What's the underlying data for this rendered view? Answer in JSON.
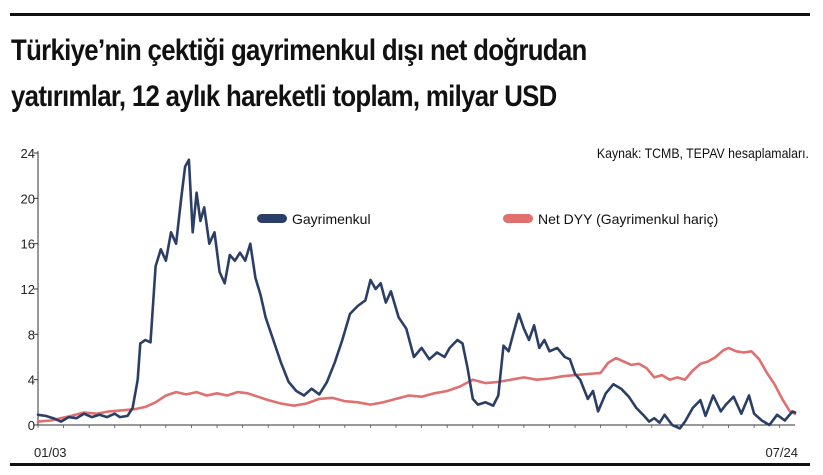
{
  "chart_data": {
    "type": "line",
    "title": "Türkiye’nin çektiği gayrimenkul dışı net doğrudan yatırımlar, 12 aylık hareketli toplam, milyar USD",
    "title_lines": [
      "Türkiye’nin çektiği gayrimenkul dışı net doğrudan",
      "yatırımlar, 12 aylık hareketli toplam, milyar USD"
    ],
    "source": "Kaynak: TCMB, TEPAV hesaplamaları.",
    "xlabel": "",
    "ylabel": "",
    "ylim": [
      0,
      24
    ],
    "y_ticks": [
      0,
      4,
      8,
      12,
      16,
      20,
      24
    ],
    "x_tick_labels": [
      "01/03",
      "07/24"
    ],
    "x_range": [
      "2003-01",
      "2024-07"
    ],
    "legend_placement": "top",
    "grid": false,
    "series": [
      {
        "name": "Gayrimenkul",
        "color": "#2b3f66",
        "points": [
          [
            2003.0,
            0.9
          ],
          [
            2003.3,
            0.8
          ],
          [
            2003.6,
            0.6
          ],
          [
            2003.9,
            0.3
          ],
          [
            2004.2,
            0.7
          ],
          [
            2004.5,
            0.6
          ],
          [
            2004.8,
            1.0
          ],
          [
            2005.1,
            0.7
          ],
          [
            2005.4,
            0.9
          ],
          [
            2005.7,
            0.7
          ],
          [
            2006.0,
            1.0
          ],
          [
            2006.2,
            0.7
          ],
          [
            2006.5,
            0.8
          ],
          [
            2006.7,
            1.5
          ],
          [
            2006.9,
            4.0
          ],
          [
            2007.0,
            7.2
          ],
          [
            2007.2,
            7.5
          ],
          [
            2007.4,
            7.3
          ],
          [
            2007.6,
            14.0
          ],
          [
            2007.8,
            15.5
          ],
          [
            2008.0,
            14.5
          ],
          [
            2008.2,
            17.0
          ],
          [
            2008.4,
            16.0
          ],
          [
            2008.6,
            20.0
          ],
          [
            2008.75,
            22.8
          ],
          [
            2008.9,
            23.4
          ],
          [
            2009.05,
            17.0
          ],
          [
            2009.2,
            20.5
          ],
          [
            2009.35,
            18.0
          ],
          [
            2009.5,
            19.2
          ],
          [
            2009.7,
            16.0
          ],
          [
            2009.9,
            17.0
          ],
          [
            2010.1,
            13.5
          ],
          [
            2010.3,
            12.5
          ],
          [
            2010.5,
            15.0
          ],
          [
            2010.7,
            14.5
          ],
          [
            2010.9,
            15.2
          ],
          [
            2011.1,
            14.5
          ],
          [
            2011.3,
            16.0
          ],
          [
            2011.5,
            13.0
          ],
          [
            2011.7,
            11.5
          ],
          [
            2011.9,
            9.5
          ],
          [
            2012.2,
            7.5
          ],
          [
            2012.5,
            5.5
          ],
          [
            2012.8,
            3.8
          ],
          [
            2013.1,
            3.0
          ],
          [
            2013.4,
            2.6
          ],
          [
            2013.7,
            3.2
          ],
          [
            2014.0,
            2.7
          ],
          [
            2014.3,
            3.8
          ],
          [
            2014.6,
            5.5
          ],
          [
            2014.9,
            7.5
          ],
          [
            2015.2,
            9.8
          ],
          [
            2015.5,
            10.5
          ],
          [
            2015.8,
            11.0
          ],
          [
            2016.0,
            12.8
          ],
          [
            2016.2,
            12.0
          ],
          [
            2016.4,
            12.5
          ],
          [
            2016.6,
            10.8
          ],
          [
            2016.8,
            11.8
          ],
          [
            2017.1,
            9.5
          ],
          [
            2017.4,
            8.5
          ],
          [
            2017.7,
            6.0
          ],
          [
            2018.0,
            6.8
          ],
          [
            2018.3,
            5.8
          ],
          [
            2018.6,
            6.4
          ],
          [
            2018.9,
            6.0
          ],
          [
            2019.1,
            6.8
          ],
          [
            2019.4,
            7.5
          ],
          [
            2019.6,
            7.2
          ],
          [
            2019.8,
            5.0
          ],
          [
            2020.0,
            2.3
          ],
          [
            2020.2,
            1.8
          ],
          [
            2020.5,
            2.0
          ],
          [
            2020.8,
            1.7
          ],
          [
            2021.0,
            2.6
          ],
          [
            2021.2,
            7.0
          ],
          [
            2021.4,
            6.5
          ],
          [
            2021.6,
            8.2
          ],
          [
            2021.8,
            9.8
          ],
          [
            2022.0,
            8.5
          ],
          [
            2022.2,
            7.5
          ],
          [
            2022.4,
            8.8
          ],
          [
            2022.6,
            6.8
          ],
          [
            2022.8,
            7.5
          ],
          [
            2023.0,
            6.5
          ],
          [
            2023.3,
            6.8
          ],
          [
            2023.6,
            6.0
          ],
          [
            2023.8,
            5.8
          ],
          [
            2024.0,
            4.5
          ],
          [
            2024.2,
            4.0
          ],
          [
            2024.5,
            2.3
          ],
          [
            2024.7,
            3.0
          ],
          [
            2024.9,
            1.2
          ],
          [
            2025.2,
            2.8
          ],
          [
            2025.5,
            3.6
          ],
          [
            2025.8,
            3.2
          ],
          [
            2026.1,
            2.5
          ],
          [
            2026.4,
            1.5
          ],
          [
            2026.7,
            0.8
          ],
          [
            2026.9,
            0.3
          ],
          [
            2027.1,
            0.6
          ],
          [
            2027.3,
            0.2
          ],
          [
            2027.5,
            0.9
          ],
          [
            2027.8,
            0.0
          ],
          [
            2028.1,
            -0.3
          ],
          [
            2028.3,
            0.3
          ],
          [
            2028.6,
            1.5
          ],
          [
            2028.9,
            2.2
          ],
          [
            2029.1,
            0.8
          ],
          [
            2029.4,
            2.6
          ],
          [
            2029.7,
            1.2
          ],
          [
            2029.9,
            1.8
          ],
          [
            2030.2,
            2.5
          ],
          [
            2030.5,
            1.0
          ],
          [
            2030.8,
            2.6
          ],
          [
            2031.0,
            1.0
          ],
          [
            2031.3,
            0.4
          ],
          [
            2031.6,
            0.0
          ],
          [
            2031.9,
            0.9
          ],
          [
            2032.2,
            0.4
          ],
          [
            2032.5,
            1.2
          ],
          [
            2032.6,
            1.1
          ]
        ]
      },
      {
        "name": "Net DYY (Gayrimenkul hariç)",
        "color": "#e07070",
        "points": [
          [
            2003.0,
            0.3
          ],
          [
            2003.5,
            0.4
          ],
          [
            2003.9,
            0.6
          ],
          [
            2004.3,
            0.8
          ],
          [
            2004.8,
            1.1
          ],
          [
            2005.3,
            1.0
          ],
          [
            2005.8,
            1.2
          ],
          [
            2006.3,
            1.3
          ],
          [
            2006.8,
            1.4
          ],
          [
            2007.2,
            1.6
          ],
          [
            2007.6,
            2.0
          ],
          [
            2008.0,
            2.6
          ],
          [
            2008.4,
            2.9
          ],
          [
            2008.8,
            2.7
          ],
          [
            2009.2,
            2.9
          ],
          [
            2009.6,
            2.6
          ],
          [
            2010.0,
            2.8
          ],
          [
            2010.4,
            2.6
          ],
          [
            2010.8,
            2.9
          ],
          [
            2011.2,
            2.8
          ],
          [
            2011.6,
            2.5
          ],
          [
            2012.0,
            2.2
          ],
          [
            2012.5,
            1.9
          ],
          [
            2013.0,
            1.7
          ],
          [
            2013.5,
            1.9
          ],
          [
            2014.0,
            2.3
          ],
          [
            2014.5,
            2.4
          ],
          [
            2015.0,
            2.1
          ],
          [
            2015.5,
            2.0
          ],
          [
            2016.0,
            1.8
          ],
          [
            2016.5,
            2.0
          ],
          [
            2017.0,
            2.3
          ],
          [
            2017.5,
            2.6
          ],
          [
            2018.0,
            2.5
          ],
          [
            2018.5,
            2.8
          ],
          [
            2019.0,
            3.0
          ],
          [
            2019.5,
            3.4
          ],
          [
            2020.0,
            4.0
          ],
          [
            2020.5,
            3.7
          ],
          [
            2021.0,
            3.8
          ],
          [
            2021.5,
            4.0
          ],
          [
            2022.0,
            4.2
          ],
          [
            2022.5,
            4.0
          ],
          [
            2023.0,
            4.1
          ],
          [
            2023.5,
            4.3
          ],
          [
            2024.0,
            4.4
          ],
          [
            2024.5,
            4.5
          ],
          [
            2025.0,
            4.6
          ],
          [
            2025.3,
            5.5
          ],
          [
            2025.6,
            5.9
          ],
          [
            2025.9,
            5.6
          ],
          [
            2026.2,
            5.3
          ],
          [
            2026.5,
            5.4
          ],
          [
            2026.8,
            5.0
          ],
          [
            2027.1,
            4.2
          ],
          [
            2027.4,
            4.4
          ],
          [
            2027.7,
            4.0
          ],
          [
            2028.0,
            4.2
          ],
          [
            2028.3,
            4.0
          ],
          [
            2028.6,
            4.8
          ],
          [
            2028.9,
            5.4
          ],
          [
            2029.2,
            5.6
          ],
          [
            2029.5,
            6.0
          ],
          [
            2029.8,
            6.6
          ],
          [
            2030.0,
            6.8
          ],
          [
            2030.3,
            6.5
          ],
          [
            2030.6,
            6.4
          ],
          [
            2030.9,
            6.5
          ],
          [
            2031.2,
            5.8
          ],
          [
            2031.5,
            4.6
          ],
          [
            2031.8,
            3.6
          ],
          [
            2032.1,
            2.3
          ],
          [
            2032.4,
            1.2
          ],
          [
            2032.6,
            1.0
          ]
        ]
      }
    ]
  }
}
